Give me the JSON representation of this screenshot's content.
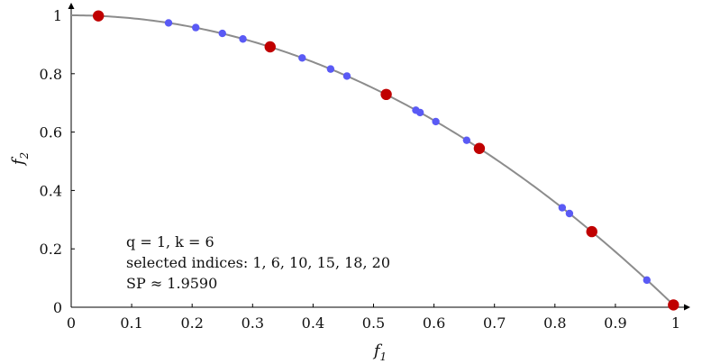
{
  "chart_data": {
    "type": "scatter",
    "xlabel": "f1",
    "ylabel": "f2",
    "xlim": [
      0,
      1
    ],
    "ylim": [
      0,
      1
    ],
    "x_ticks": [
      "0",
      "0.1",
      "0.2",
      "0.3",
      "0.4",
      "0.5",
      "0.6",
      "0.7",
      "0.8",
      "0.9",
      "1"
    ],
    "y_ticks": [
      "0",
      "0.2",
      "0.4",
      "0.6",
      "0.8",
      "1"
    ],
    "grid": false,
    "curve": {
      "type": "line",
      "function": "f2 = 1 - f1^2",
      "color": "#8c8c8c"
    },
    "series": [
      {
        "color": "#5a5af5",
        "points": [
          [
            0.161,
            0.974
          ],
          [
            0.206,
            0.958
          ],
          [
            0.25,
            0.938
          ],
          [
            0.284,
            0.919
          ],
          [
            0.382,
            0.854
          ],
          [
            0.429,
            0.816
          ],
          [
            0.456,
            0.792
          ],
          [
            0.57,
            0.675
          ],
          [
            0.577,
            0.667
          ],
          [
            0.603,
            0.636
          ],
          [
            0.654,
            0.572
          ],
          [
            0.812,
            0.341
          ],
          [
            0.824,
            0.321
          ],
          [
            0.952,
            0.093
          ]
        ]
      },
      {
        "color": "#c00000",
        "points": [
          [
            0.045,
            0.998
          ],
          [
            0.329,
            0.892
          ],
          [
            0.521,
            0.729
          ],
          [
            0.675,
            0.544
          ],
          [
            0.861,
            0.259
          ],
          [
            0.996,
            0.008
          ]
        ]
      }
    ],
    "annotation": [
      "q = 1, k = 6",
      "selected indices: 1, 6, 10, 15, 18, 20",
      "SP ≈ 1.9590"
    ]
  }
}
